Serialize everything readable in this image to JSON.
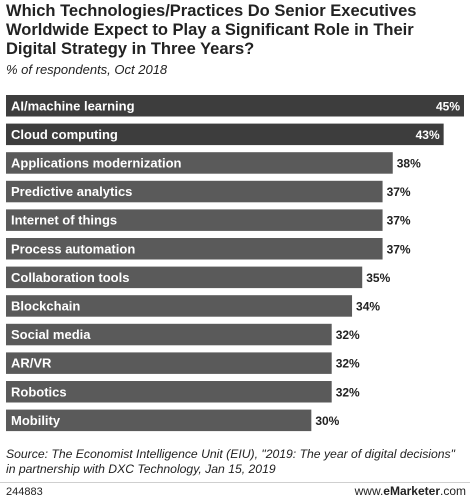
{
  "chart_data": {
    "type": "bar",
    "orientation": "horizontal",
    "title": "Which Technologies/Practices Do Senior Executives Worldwide Expect to Play a Significant Role in Their Digital Strategy in Three Years?",
    "subtitle": "% of respondents, Oct 2018",
    "categories": [
      "AI/machine learning",
      "Cloud computing",
      "Applications modernization",
      "Predictive analytics",
      "Internet of things",
      "Process automation",
      "Collaboration tools",
      "Blockchain",
      "Social media",
      "AR/VR",
      "Robotics",
      "Mobility"
    ],
    "values": [
      45,
      43,
      38,
      37,
      37,
      37,
      35,
      34,
      32,
      32,
      32,
      30
    ],
    "value_labels": [
      "45%",
      "43%",
      "38%",
      "37%",
      "37%",
      "37%",
      "35%",
      "34%",
      "32%",
      "32%",
      "32%",
      "30%"
    ],
    "xlim": [
      0,
      45
    ],
    "grid": false,
    "bar_color": "#5a5a5a",
    "highlight_color": "#3d3d3d"
  },
  "source": "Source: The Economist Intelligence Unit (EIU), \"2019: The year of digital decisions\" in partnership with DXC Technology, Jan 15, 2019",
  "chart_id": "244883",
  "brand_prefix": "www.",
  "brand_name": "eMarketer",
  "brand_suffix": ".com"
}
